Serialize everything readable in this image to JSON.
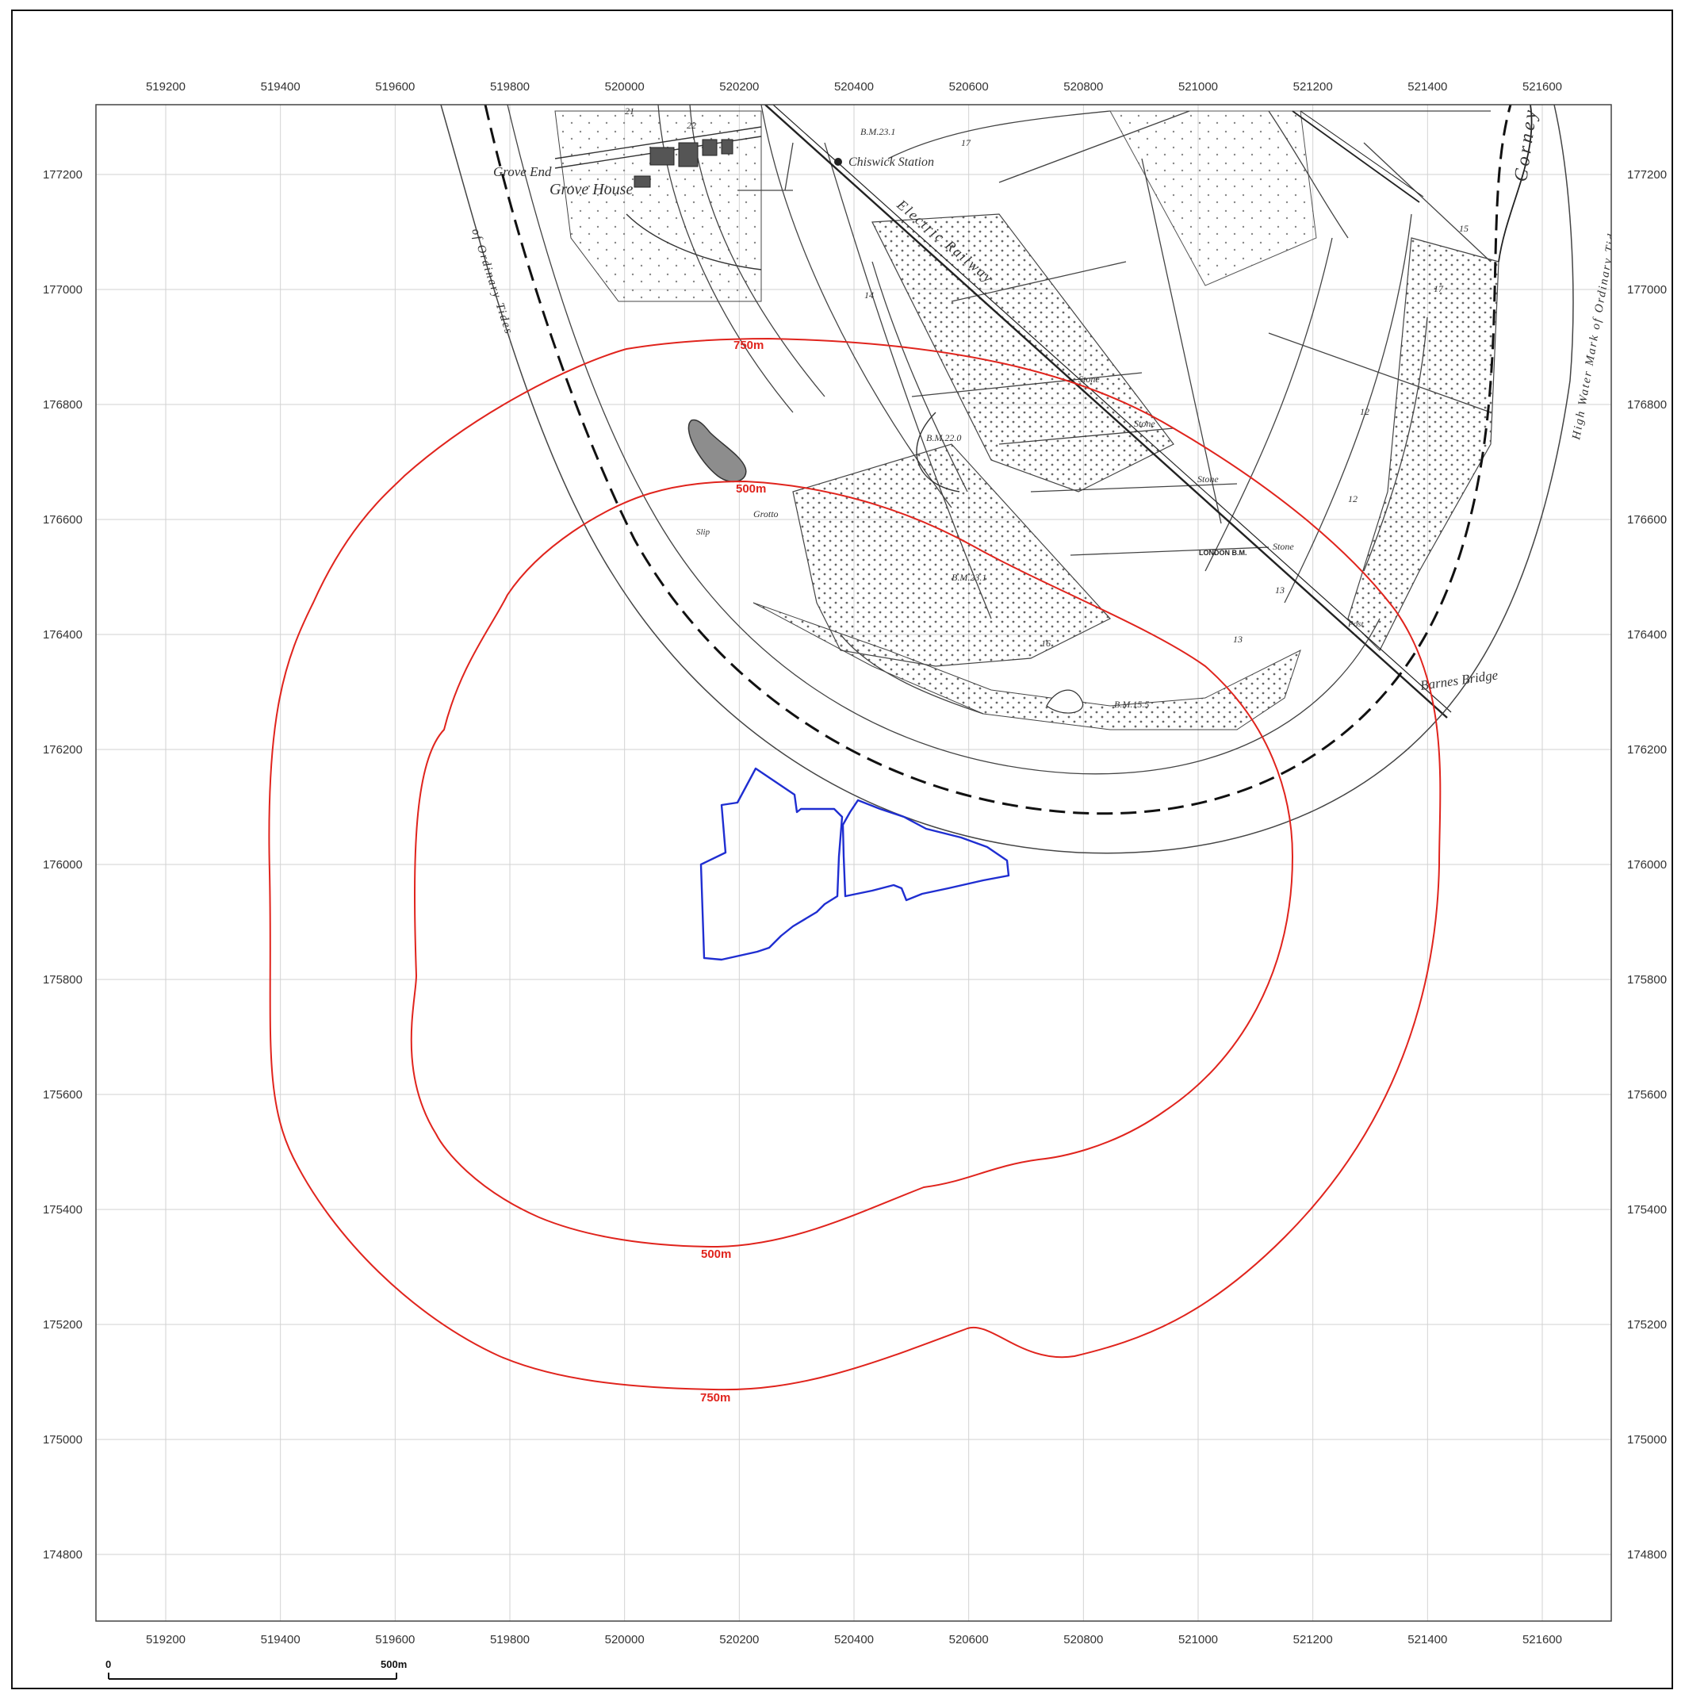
{
  "map": {
    "grid": {
      "eastings": [
        519200,
        519400,
        519600,
        519800,
        520000,
        520200,
        520400,
        520600,
        520800,
        521000,
        521200,
        521400,
        521600
      ],
      "northings": [
        177200,
        177000,
        176800,
        176600,
        176400,
        176200,
        176000,
        175800,
        175600,
        175400,
        175200,
        175000,
        174800
      ],
      "easting_labels": [
        "519200",
        "519400",
        "519600",
        "519800",
        "520000",
        "520200",
        "520400",
        "520600",
        "520800",
        "521000",
        "521200",
        "521400",
        "521600"
      ],
      "northing_labels": [
        "177200",
        "177000",
        "176800",
        "176600",
        "176400",
        "176200",
        "176000",
        "175800",
        "175600",
        "175400",
        "175200",
        "175000",
        "174800"
      ]
    },
    "historic_labels": {
      "grove_end": "Grove End",
      "grove_house": "Grove House",
      "chiswick_station": "Chiswick Station",
      "barnes_bridge": "Barnes Bridge",
      "corney": "Corney",
      "high_water": "High Water Mark of Ordinary Tides",
      "ordinary_tides": "of Ordinary Tides",
      "railway": "Electric Railway",
      "bm_top": "B.M.23.1",
      "bm_mid": "B.M.22.0",
      "bm_low": "B.M.23.1",
      "bm_river": "B.M.15.5",
      "stone": "Stone",
      "london_bm": "LONDON B.M.",
      "grotto": "Grotto",
      "slip": "Slip",
      "post": "Post",
      "plot_12": "12",
      "plot_13": "13",
      "plot_14": "14",
      "plot_15": "15",
      "plot_16": "16",
      "plot_17": "17",
      "plot_21": "21",
      "plot_22": "22"
    },
    "buffers": {
      "inner_label_top": "500m",
      "inner_label_bottom": "500m",
      "outer_label_top": "750m",
      "outer_label_bottom": "750m",
      "color": "#e0241d"
    },
    "site": {
      "color": "#1f2ed1"
    },
    "scalebar": {
      "start_label": "0",
      "end_label": "500m"
    }
  }
}
